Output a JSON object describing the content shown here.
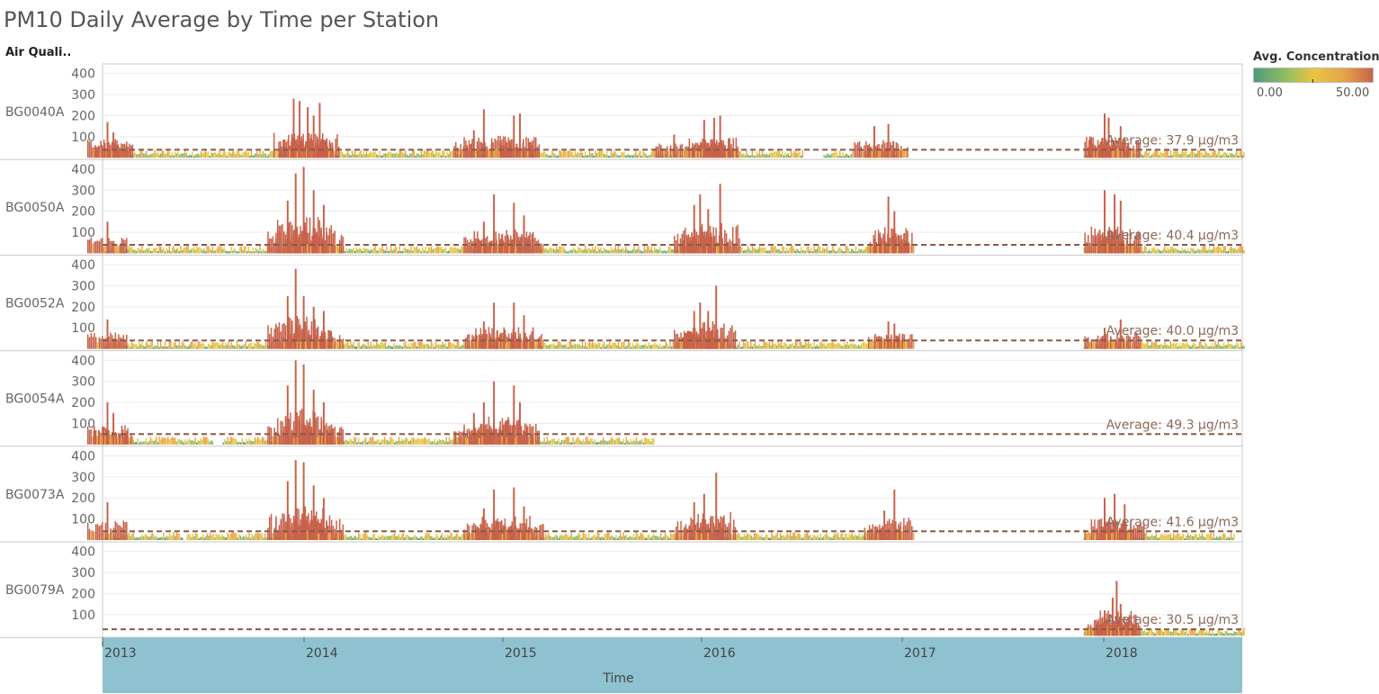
{
  "title": "PM10 Daily Average by Time per Station",
  "row_header": "Air Quali..",
  "legend": {
    "title": "Avg. Concentration",
    "min_label": "0.00",
    "max_label": "50.00",
    "colors": [
      "#4e9a7e",
      "#8dbb63",
      "#e8c545",
      "#e7a54a",
      "#c8624b"
    ]
  },
  "chart_data": {
    "type": "bar",
    "xlabel": "Time",
    "x_ticks": [
      "2013",
      "2014",
      "2015",
      "2016",
      "2017",
      "2018"
    ],
    "x_range": [
      2013.0,
      2018.7
    ],
    "ylim": [
      0,
      420
    ],
    "y_ticks": [
      100,
      200,
      300,
      400
    ],
    "grid": true,
    "reference_line": "average (dashed)",
    "series": [
      {
        "name": "BG0040A",
        "average_label": "Average: 37.9 µg/m3",
        "average": 37.9,
        "coverage": [
          [
            2013.0,
            2016.5
          ],
          [
            2016.6,
            2016.75
          ],
          [
            2016.8,
            2017.0
          ],
          [
            2017.9,
            2018.7
          ]
        ],
        "peaks": [
          [
            2013.02,
            170
          ],
          [
            2013.05,
            120
          ],
          [
            2013.95,
            280
          ],
          [
            2013.98,
            270
          ],
          [
            2014.02,
            240
          ],
          [
            2014.05,
            200
          ],
          [
            2014.08,
            260
          ],
          [
            2014.85,
            130
          ],
          [
            2014.9,
            230
          ],
          [
            2015.05,
            200
          ],
          [
            2015.08,
            210
          ],
          [
            2015.85,
            110
          ],
          [
            2016.0,
            180
          ],
          [
            2016.05,
            190
          ],
          [
            2016.08,
            200
          ],
          [
            2016.85,
            150
          ],
          [
            2016.92,
            160
          ],
          [
            2018.0,
            210
          ],
          [
            2018.02,
            190
          ],
          [
            2018.08,
            150
          ]
        ]
      },
      {
        "name": "BG0050A",
        "average_label": "Average: 40.4 µg/m3",
        "average": 40.4,
        "coverage": [
          [
            2013.0,
            2017.0
          ],
          [
            2017.9,
            2018.7
          ]
        ],
        "peaks": [
          [
            2013.02,
            150
          ],
          [
            2013.92,
            250
          ],
          [
            2013.96,
            380
          ],
          [
            2014.0,
            410
          ],
          [
            2014.05,
            300
          ],
          [
            2014.1,
            230
          ],
          [
            2014.9,
            150
          ],
          [
            2014.95,
            280
          ],
          [
            2015.05,
            240
          ],
          [
            2015.1,
            180
          ],
          [
            2015.95,
            230
          ],
          [
            2015.98,
            280
          ],
          [
            2016.02,
            210
          ],
          [
            2016.08,
            330
          ],
          [
            2016.92,
            270
          ],
          [
            2016.95,
            200
          ],
          [
            2018.0,
            300
          ],
          [
            2018.05,
            280
          ],
          [
            2018.08,
            250
          ]
        ]
      },
      {
        "name": "BG0052A",
        "average_label": "Average: 40.0 µg/m3",
        "average": 40.0,
        "coverage": [
          [
            2013.0,
            2017.0
          ],
          [
            2017.9,
            2018.7
          ]
        ],
        "peaks": [
          [
            2013.02,
            140
          ],
          [
            2013.92,
            250
          ],
          [
            2013.96,
            380
          ],
          [
            2014.0,
            250
          ],
          [
            2014.05,
            200
          ],
          [
            2014.1,
            180
          ],
          [
            2014.9,
            130
          ],
          [
            2014.95,
            220
          ],
          [
            2015.05,
            220
          ],
          [
            2015.1,
            160
          ],
          [
            2015.95,
            180
          ],
          [
            2015.98,
            220
          ],
          [
            2016.02,
            180
          ],
          [
            2016.06,
            300
          ],
          [
            2016.92,
            130
          ],
          [
            2016.95,
            120
          ],
          [
            2018.0,
            100
          ],
          [
            2018.08,
            140
          ]
        ]
      },
      {
        "name": "BG0054A",
        "average_label": "Average: 49.3 µg/m3",
        "average": 49.3,
        "coverage": [
          [
            2013.0,
            2013.55
          ],
          [
            2013.6,
            2015.75
          ]
        ],
        "peaks": [
          [
            2013.02,
            200
          ],
          [
            2013.05,
            150
          ],
          [
            2013.92,
            280
          ],
          [
            2013.96,
            400
          ],
          [
            2014.0,
            380
          ],
          [
            2014.05,
            260
          ],
          [
            2014.1,
            200
          ],
          [
            2014.85,
            150
          ],
          [
            2014.9,
            200
          ],
          [
            2014.95,
            300
          ],
          [
            2015.05,
            280
          ],
          [
            2015.08,
            200
          ]
        ]
      },
      {
        "name": "BG0073A",
        "average_label": "Average: 41.6 µg/m3",
        "average": 41.6,
        "coverage": [
          [
            2013.0,
            2013.4
          ],
          [
            2013.42,
            2017.0
          ],
          [
            2017.9,
            2018.65
          ]
        ],
        "peaks": [
          [
            2013.02,
            180
          ],
          [
            2013.92,
            280
          ],
          [
            2013.96,
            380
          ],
          [
            2014.0,
            370
          ],
          [
            2014.05,
            260
          ],
          [
            2014.1,
            200
          ],
          [
            2014.9,
            150
          ],
          [
            2014.95,
            240
          ],
          [
            2015.05,
            250
          ],
          [
            2015.1,
            160
          ],
          [
            2015.95,
            180
          ],
          [
            2016.0,
            220
          ],
          [
            2016.06,
            320
          ],
          [
            2016.9,
            140
          ],
          [
            2016.95,
            240
          ],
          [
            2018.0,
            200
          ],
          [
            2018.05,
            220
          ],
          [
            2018.1,
            170
          ]
        ]
      },
      {
        "name": "BG0079A",
        "average_label": "Average: 30.5 µg/m3",
        "average": 30.5,
        "coverage": [
          [
            2017.9,
            2018.7
          ]
        ],
        "peaks": [
          [
            2018.0,
            120
          ],
          [
            2018.02,
            100
          ],
          [
            2018.04,
            180
          ],
          [
            2018.06,
            260
          ],
          [
            2018.08,
            150
          ]
        ]
      }
    ]
  }
}
